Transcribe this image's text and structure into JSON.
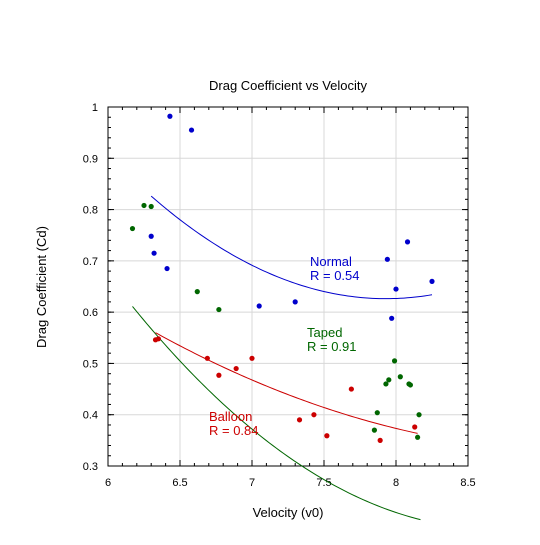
{
  "chart_data": {
    "type": "scatter",
    "title": "Drag Coefficient vs Velocity",
    "xlabel": "Velocity (v0)",
    "ylabel": "Drag Coefficient (Cd)",
    "xlim": [
      6,
      8.5
    ],
    "ylim": [
      0.3,
      1.0
    ],
    "grid": true,
    "x_ticks": [
      6,
      6.5,
      7,
      7.5,
      8,
      8.5
    ],
    "x_tick_labels": [
      "6",
      "6.5",
      "7",
      "7.5",
      "8",
      "8.5"
    ],
    "y_ticks": [
      0.3,
      0.4,
      0.5,
      0.6,
      0.7,
      0.8,
      0.9,
      1.0
    ],
    "y_tick_labels": [
      "0.3",
      "0.4",
      "0.5",
      "0.6",
      "0.7",
      "0.8",
      "0.9",
      "1"
    ],
    "series": [
      {
        "name": "Normal",
        "color": "#0000cc",
        "fit_label_line1": "Normal",
        "fit_label_line2": "R = 0.54",
        "points": [
          [
            6.43,
            0.982
          ],
          [
            6.58,
            0.955
          ],
          [
            6.3,
            0.748
          ],
          [
            6.32,
            0.715
          ],
          [
            6.41,
            0.685
          ],
          [
            7.05,
            0.612
          ],
          [
            7.3,
            0.62
          ],
          [
            7.94,
            0.703
          ],
          [
            7.97,
            0.588
          ],
          [
            8.0,
            0.645
          ],
          [
            8.08,
            0.737
          ],
          [
            8.25,
            0.66
          ]
        ],
        "fit_coeffs": [
          5.3564,
          -1.1929,
          0.07521
        ],
        "fit_range": [
          6.3,
          8.25
        ]
      },
      {
        "name": "Taped",
        "color": "#006600",
        "fit_label_line1": "Taped",
        "fit_label_line2": "R = 0.91",
        "points": [
          [
            6.17,
            0.763
          ],
          [
            6.25,
            0.808
          ],
          [
            6.3,
            0.806
          ],
          [
            6.62,
            0.64
          ],
          [
            6.77,
            0.605
          ],
          [
            7.85,
            0.37
          ],
          [
            7.87,
            0.404
          ],
          [
            7.93,
            0.46
          ],
          [
            7.95,
            0.468
          ],
          [
            7.99,
            0.505
          ],
          [
            8.03,
            0.474
          ],
          [
            8.09,
            0.46
          ],
          [
            8.1,
            0.458
          ],
          [
            8.15,
            0.356
          ],
          [
            8.16,
            0.4
          ]
        ],
        "fit_coeffs": [
          5.3564,
          -1.1929,
          0.06869
        ],
        "fit_range": [
          6.17,
          8.17
        ]
      },
      {
        "name": "Balloon",
        "color": "#cc0000",
        "fit_label_line1": "Balloon",
        "fit_label_line2": "R = 0.84",
        "points": [
          [
            6.33,
            0.546
          ],
          [
            6.35,
            0.548
          ],
          [
            6.69,
            0.51
          ],
          [
            6.77,
            0.477
          ],
          [
            6.89,
            0.49
          ],
          [
            7.0,
            0.51
          ],
          [
            7.33,
            0.39
          ],
          [
            7.43,
            0.4
          ],
          [
            7.52,
            0.359
          ],
          [
            7.69,
            0.45
          ],
          [
            7.89,
            0.35
          ],
          [
            8.13,
            0.376
          ]
        ],
        "fit_coeffs": [
          2.5776,
          -0.4825,
          0.02587
        ],
        "fit_range": [
          6.33,
          8.15
        ]
      }
    ]
  }
}
